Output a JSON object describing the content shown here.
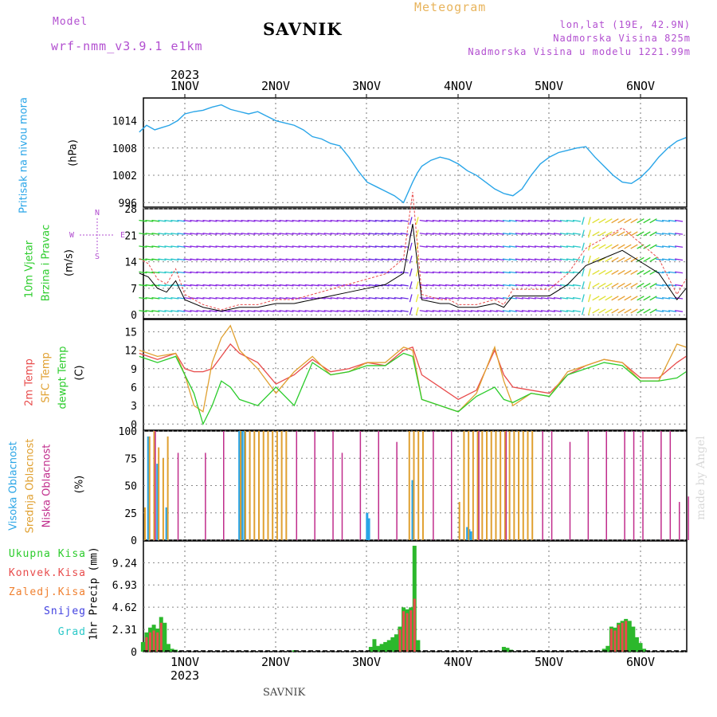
{
  "header": {
    "model_label": "Model",
    "model_name": "wrf-nmm_v3.9.1 e1km",
    "title": "SAVNIK",
    "meteogram_label": "Meteogram",
    "location_line": "lon,lat (19E, 42.9N)",
    "elevation_line": "Nadmorska Visina 825m",
    "model_elevation_line": "Nadmorska Visina u modelu 1221.99m",
    "footer_station": "SAVNIK",
    "watermark": "made by Angel"
  },
  "colors": {
    "header_purple": "#b24fd0",
    "meteogram_orange": "#e8b45c",
    "pressure_blue": "#29a5e8",
    "temp_red": "#e84c4c",
    "sfc_orange": "#e0a030",
    "dewpt_green": "#2ccc2c",
    "high_cloud": "#2aa5e6",
    "mid_cloud": "#e0a030",
    "low_cloud": "#c02d8c",
    "precip_green": "#2cb82c",
    "conv_red": "#e84c4c",
    "snow_blue": "#4040e0",
    "grad_cyan": "#2ac8c8"
  },
  "axes": {
    "top_year": "2023",
    "bottom_year": "2023",
    "day_labels": [
      "1NOV",
      "2NOV",
      "3NOV",
      "4NOV",
      "5NOV",
      "6NOV"
    ]
  },
  "panels": {
    "pressure": {
      "label": "Pritisak na nivou mora",
      "unit": "(hPa)",
      "ticks": [
        "1014",
        "1008",
        "1002",
        "996"
      ]
    },
    "wind": {
      "label_line1": "10m Vjetar",
      "label_line2": "Brzina i Pravac",
      "unit": "(m/s)",
      "ticks": [
        "28",
        "21",
        "14",
        "7",
        "0"
      ],
      "compass_n": "N",
      "compass_s": "S",
      "compass_w": "W",
      "compass_e": "E",
      "compass_n_text": "<-|->",
      "compass_s_text": "<-|->"
    },
    "temp": {
      "label_2m": "2m Temp",
      "label_sfc": "SFC Temp",
      "label_dewpt": "dewpt Temp",
      "unit": "(C)",
      "ticks": [
        "15",
        "12",
        "9",
        "6",
        "3",
        "0"
      ]
    },
    "cloud": {
      "label_high": "Visoka Oblacnost",
      "label_mid": "Srednja Oblacnost",
      "label_low": "Niska Oblacnost",
      "unit": "(%)",
      "ticks": [
        "100",
        "75",
        "50",
        "25",
        "0"
      ]
    },
    "precip": {
      "legend": [
        "Ukupna Kisa",
        "Konvek.Kisa",
        "Zaledj.Kisa",
        "Snijeg",
        "Grad"
      ],
      "axis_label": "1hr Precip (mm)",
      "ticks": [
        "9.24",
        "6.93",
        "4.62",
        "2.31",
        "0"
      ]
    }
  },
  "chart_data": [
    {
      "type": "line",
      "title": "Pritisak na nivou mora",
      "ylabel": "(hPa)",
      "ylim": [
        995,
        1019
      ],
      "x_unit": "days from 1NOV 00UTC",
      "xlim": [
        -0.5,
        5.5
      ],
      "series": [
        {
          "x": [
            -0.5,
            -0.42,
            -0.33,
            -0.25,
            -0.17,
            -0.08,
            0,
            0.1,
            0.2,
            0.3,
            0.4,
            0.5,
            0.6,
            0.7,
            0.8,
            0.9,
            1.0,
            1.1,
            1.2,
            1.3,
            1.4,
            1.5,
            1.6,
            1.7,
            1.8,
            1.9,
            2.0,
            2.1,
            2.2,
            2.3,
            2.4,
            2.5,
            2.55,
            2.6,
            2.7,
            2.8,
            2.9,
            3.0,
            3.1,
            3.2,
            3.3,
            3.4,
            3.5,
            3.6,
            3.7,
            3.8,
            3.9,
            4.0,
            4.1,
            4.2,
            4.3,
            4.4,
            4.5,
            4.6,
            4.7,
            4.8,
            4.9,
            5.0,
            5.1,
            5.2,
            5.3,
            5.4,
            5.5
          ],
          "values": [
            1011.5,
            1013.0,
            1012.0,
            1012.5,
            1013.0,
            1014.0,
            1015.5,
            1016.0,
            1016.3,
            1017.0,
            1017.5,
            1016.5,
            1016.0,
            1015.5,
            1016.0,
            1015.0,
            1014.0,
            1013.5,
            1013.0,
            1012.0,
            1010.5,
            1010.0,
            1009.0,
            1008.5,
            1006.0,
            1003.0,
            1000.5,
            999.5,
            998.5,
            997.5,
            996.0,
            1000.5,
            1002.5,
            1004.0,
            1005.3,
            1006.0,
            1005.5,
            1004.5,
            1003.0,
            1002.0,
            1000.5,
            999.0,
            998.0,
            997.5,
            999.0,
            1002.0,
            1004.5,
            1006.0,
            1007.0,
            1007.5,
            1008.0,
            1008.3,
            1006.0,
            1004.0,
            1002.0,
            1000.5,
            1000.2,
            1001.5,
            1003.5,
            1006.0,
            1008.0,
            1009.5,
            1010.3
          ],
          "name": ""
        }
      ]
    },
    {
      "type": "line",
      "title": "10m Vjetar Brzina i Pravac",
      "ylabel": "(m/s)",
      "ylim": [
        -1,
        28
      ],
      "x_unit": "days from 1NOV 00UTC",
      "xlim": [
        -0.5,
        5.5
      ],
      "series": [
        {
          "name": "",
          "x": [
            -0.5,
            -0.4,
            -0.3,
            -0.2,
            -0.1,
            0,
            0.2,
            0.4,
            0.6,
            0.8,
            1.0,
            1.2,
            1.4,
            1.6,
            1.8,
            2.0,
            2.2,
            2.4,
            2.5,
            2.6,
            2.8,
            2.9,
            3.0,
            3.2,
            3.4,
            3.5,
            3.6,
            3.7,
            3.8,
            4.0,
            4.2,
            4.4,
            4.6,
            4.8,
            5.0,
            5.2,
            5.4,
            5.5
          ],
          "values": [
            11,
            10,
            7,
            6,
            9,
            4,
            2,
            1,
            2,
            2,
            3,
            3,
            4,
            5,
            6,
            7,
            8,
            11,
            24,
            4,
            3,
            3,
            2,
            2,
            3,
            2,
            5,
            5,
            5,
            5,
            8,
            13,
            15,
            17,
            14,
            11,
            4,
            7
          ]
        }
      ]
    },
    {
      "type": "line",
      "title": "2m Temp / SFC Temp / dewpt Temp",
      "ylabel": "(C)",
      "ylim": [
        -1,
        17
      ],
      "x_unit": "days from 1NOV 00UTC",
      "xlim": [
        -0.5,
        5.5
      ],
      "series": [
        {
          "name": "2m Temp",
          "x": [
            -0.5,
            -0.3,
            -0.1,
            0.0,
            0.1,
            0.2,
            0.3,
            0.4,
            0.5,
            0.6,
            0.8,
            1.0,
            1.2,
            1.4,
            1.6,
            1.8,
            2.0,
            2.2,
            2.4,
            2.5,
            2.6,
            2.8,
            3.0,
            3.2,
            3.4,
            3.5,
            3.6,
            3.8,
            4.0,
            4.2,
            4.4,
            4.6,
            4.8,
            5.0,
            5.2,
            5.4,
            5.5
          ],
          "values": [
            11.5,
            10.5,
            11.5,
            9,
            8.5,
            8.5,
            9,
            11,
            13,
            11.5,
            10,
            6.5,
            8,
            10.5,
            8.5,
            9,
            10,
            9.5,
            12,
            12.5,
            8,
            6,
            4,
            5.5,
            12,
            8,
            6,
            5.5,
            5,
            8,
            9.5,
            10.5,
            10,
            7.5,
            7.5,
            10,
            11
          ]
        },
        {
          "name": "SFC Temp",
          "x": [
            -0.5,
            -0.3,
            -0.1,
            0.0,
            0.1,
            0.2,
            0.3,
            0.4,
            0.5,
            0.6,
            0.8,
            1.0,
            1.2,
            1.4,
            1.6,
            1.8,
            2.0,
            2.2,
            2.4,
            2.5,
            2.6,
            2.8,
            3.0,
            3.2,
            3.4,
            3.5,
            3.6,
            3.8,
            4.0,
            4.2,
            4.4,
            4.6,
            4.8,
            5.0,
            5.2,
            5.4,
            5.5
          ],
          "values": [
            12,
            11,
            11.5,
            8,
            3,
            2,
            10,
            14,
            16,
            12,
            9,
            5,
            8.5,
            11,
            8,
            8.5,
            10,
            10,
            12.5,
            12,
            4,
            3,
            2,
            5,
            12.5,
            7,
            3,
            5,
            4.5,
            8.5,
            9.5,
            10.5,
            10,
            7,
            7,
            13,
            12.5
          ]
        },
        {
          "name": "dewpt Temp",
          "x": [
            -0.5,
            -0.3,
            -0.1,
            0.0,
            0.1,
            0.2,
            0.3,
            0.4,
            0.5,
            0.6,
            0.8,
            1.0,
            1.2,
            1.4,
            1.6,
            1.8,
            2.0,
            2.2,
            2.4,
            2.5,
            2.6,
            2.8,
            3.0,
            3.2,
            3.4,
            3.5,
            3.6,
            3.8,
            4.0,
            4.2,
            4.4,
            4.6,
            4.8,
            5.0,
            5.2,
            5.4,
            5.5
          ],
          "values": [
            11,
            10,
            11,
            8,
            5,
            0,
            3,
            7,
            6,
            4,
            3,
            6,
            3,
            10,
            8,
            8.5,
            9.5,
            9.5,
            11.5,
            11,
            4,
            3,
            2,
            4.5,
            6,
            4,
            3.5,
            5,
            4.5,
            8,
            9,
            10,
            9.5,
            7,
            7,
            7.5,
            8.5
          ]
        }
      ]
    },
    {
      "type": "bar",
      "title": "Oblacnost",
      "ylabel": "(%)",
      "ylim": [
        0,
        100
      ],
      "x_unit": "days from 1NOV 00UTC",
      "note": "hourly cloud cover bars",
      "series": [
        {
          "name": "Visoka Oblacnost",
          "x": [
            -0.4,
            -0.3,
            -0.2,
            0.6,
            0.63,
            0.66,
            2.0,
            2.02,
            2.5,
            3.1,
            3.12,
            3.14
          ],
          "values": [
            95,
            70,
            30,
            100,
            100,
            100,
            25,
            20,
            55,
            12,
            10,
            8
          ]
        },
        {
          "name": "Srednja Oblacnost",
          "x": [
            -0.45,
            -0.4,
            -0.35,
            -0.3,
            -0.25,
            -0.2,
            0.6,
            0.65,
            0.7,
            0.75,
            0.8,
            0.85,
            0.9,
            0.95,
            1.0,
            1.05,
            1.1,
            2.45,
            2.5,
            2.55,
            2.6,
            3.0,
            3.05,
            3.1,
            3.15,
            3.2,
            3.25,
            3.3,
            3.35,
            3.4,
            3.45,
            3.5,
            3.55,
            3.6,
            3.65,
            3.7,
            3.75,
            3.8
          ],
          "values": [
            30,
            95,
            100,
            85,
            75,
            95,
            100,
            100,
            100,
            100,
            100,
            100,
            100,
            100,
            100,
            100,
            100,
            100,
            100,
            100,
            100,
            35,
            100,
            100,
            100,
            100,
            100,
            100,
            100,
            100,
            100,
            100,
            100,
            100,
            100,
            100,
            100,
            100
          ]
        },
        {
          "name": "Niska Oblacnost",
          "x": [
            -0.35,
            -0.1,
            0.2,
            0.4,
            1.2,
            1.4,
            1.6,
            1.7,
            1.9,
            2.1,
            2.3,
            2.7,
            2.9,
            3.2,
            3.5,
            3.9,
            4.0,
            4.2,
            4.4,
            4.6,
            4.8,
            4.9,
            5.0,
            5.2,
            5.3,
            5.4,
            5.5
          ],
          "values": [
            100,
            80,
            80,
            100,
            100,
            100,
            100,
            80,
            100,
            100,
            90,
            100,
            100,
            100,
            100,
            100,
            100,
            90,
            100,
            100,
            100,
            100,
            100,
            100,
            100,
            35,
            40
          ]
        }
      ]
    },
    {
      "type": "bar",
      "title": "1hr Precip (mm)",
      "ylabel": "1hr Precip (mm)",
      "ylim": [
        0,
        11.5
      ],
      "x_unit": "days from 1NOV 00UTC",
      "series": [
        {
          "name": "Ukupna Kisa",
          "x": [
            -0.46,
            -0.42,
            -0.38,
            -0.34,
            -0.3,
            -0.26,
            -0.22,
            -0.18,
            -0.14,
            -0.1,
            1.2,
            2.04,
            2.08,
            2.12,
            2.16,
            2.2,
            2.24,
            2.28,
            2.32,
            2.36,
            2.4,
            2.44,
            2.48,
            2.52,
            2.56,
            3.5,
            3.54,
            3.58,
            4.6,
            4.64,
            4.68,
            4.72,
            4.76,
            4.8,
            4.84,
            4.88,
            4.92,
            4.96,
            5.0,
            5.04
          ],
          "values": [
            1.0,
            2.0,
            2.5,
            2.8,
            2.4,
            3.6,
            3.0,
            0.8,
            0.3,
            0.2,
            0.15,
            0.5,
            1.3,
            0.6,
            0.8,
            1.0,
            1.2,
            1.5,
            1.8,
            2.6,
            4.6,
            4.4,
            4.6,
            11.0,
            1.2,
            0.5,
            0.4,
            0.2,
            0.3,
            0.6,
            2.6,
            2.5,
            3.0,
            3.2,
            3.4,
            3.2,
            2.6,
            1.5,
            0.9,
            0.3
          ]
        },
        {
          "name": "Konvek.Kisa",
          "x": [
            -0.42,
            -0.38,
            -0.34,
            -0.3,
            -0.26,
            2.36,
            2.4,
            2.44,
            2.48,
            2.52,
            4.68,
            4.72,
            4.76,
            4.8,
            4.84
          ],
          "values": [
            1.5,
            2.0,
            2.2,
            2.0,
            3.0,
            2.3,
            4.2,
            4.0,
            4.3,
            5.5,
            2.4,
            2.2,
            2.8,
            3.0,
            3.2
          ]
        }
      ]
    }
  ]
}
